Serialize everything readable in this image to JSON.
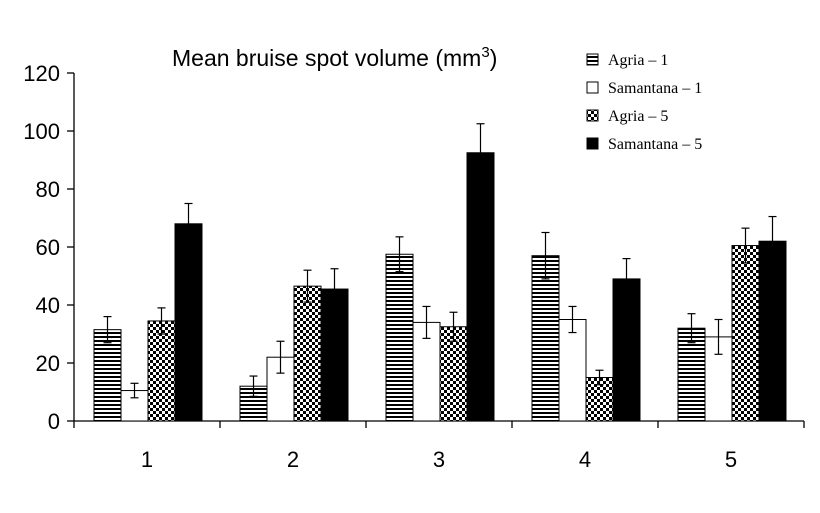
{
  "chart_data": {
    "type": "bar",
    "title": "Mean bruise spot volume (mm",
    "title_superscript": "3",
    "title_suffix": ")",
    "xlabel": "",
    "ylabel": "",
    "ylim": [
      0,
      120
    ],
    "yticks": [
      0,
      20,
      40,
      60,
      80,
      100,
      120
    ],
    "grid": false,
    "legend_position": "top-right",
    "categories": [
      "1",
      "2",
      "3",
      "4",
      "5"
    ],
    "series": [
      {
        "name": "Agria – 1",
        "pattern": "stripes",
        "values": [
          31.5,
          12.0,
          57.5,
          57.0,
          32.0
        ],
        "errors": [
          4.5,
          3.5,
          6.0,
          8.0,
          5.0
        ]
      },
      {
        "name": "Samantana – 1",
        "pattern": "white",
        "values": [
          10.5,
          22.0,
          34.0,
          35.0,
          29.0
        ],
        "errors": [
          2.5,
          5.5,
          5.5,
          4.5,
          6.0
        ]
      },
      {
        "name": "Agria – 5",
        "pattern": "checker",
        "values": [
          34.5,
          46.5,
          32.5,
          15.0,
          60.5
        ],
        "errors": [
          4.5,
          5.5,
          5.0,
          2.5,
          6.0
        ]
      },
      {
        "name": "Samantana – 5",
        "pattern": "black",
        "values": [
          68.0,
          45.5,
          92.5,
          49.0,
          62.0
        ],
        "errors": [
          7.0,
          7.0,
          10.0,
          7.0,
          8.5
        ]
      }
    ],
    "colors": {
      "black": "#000000",
      "white": "#ffffff"
    }
  }
}
